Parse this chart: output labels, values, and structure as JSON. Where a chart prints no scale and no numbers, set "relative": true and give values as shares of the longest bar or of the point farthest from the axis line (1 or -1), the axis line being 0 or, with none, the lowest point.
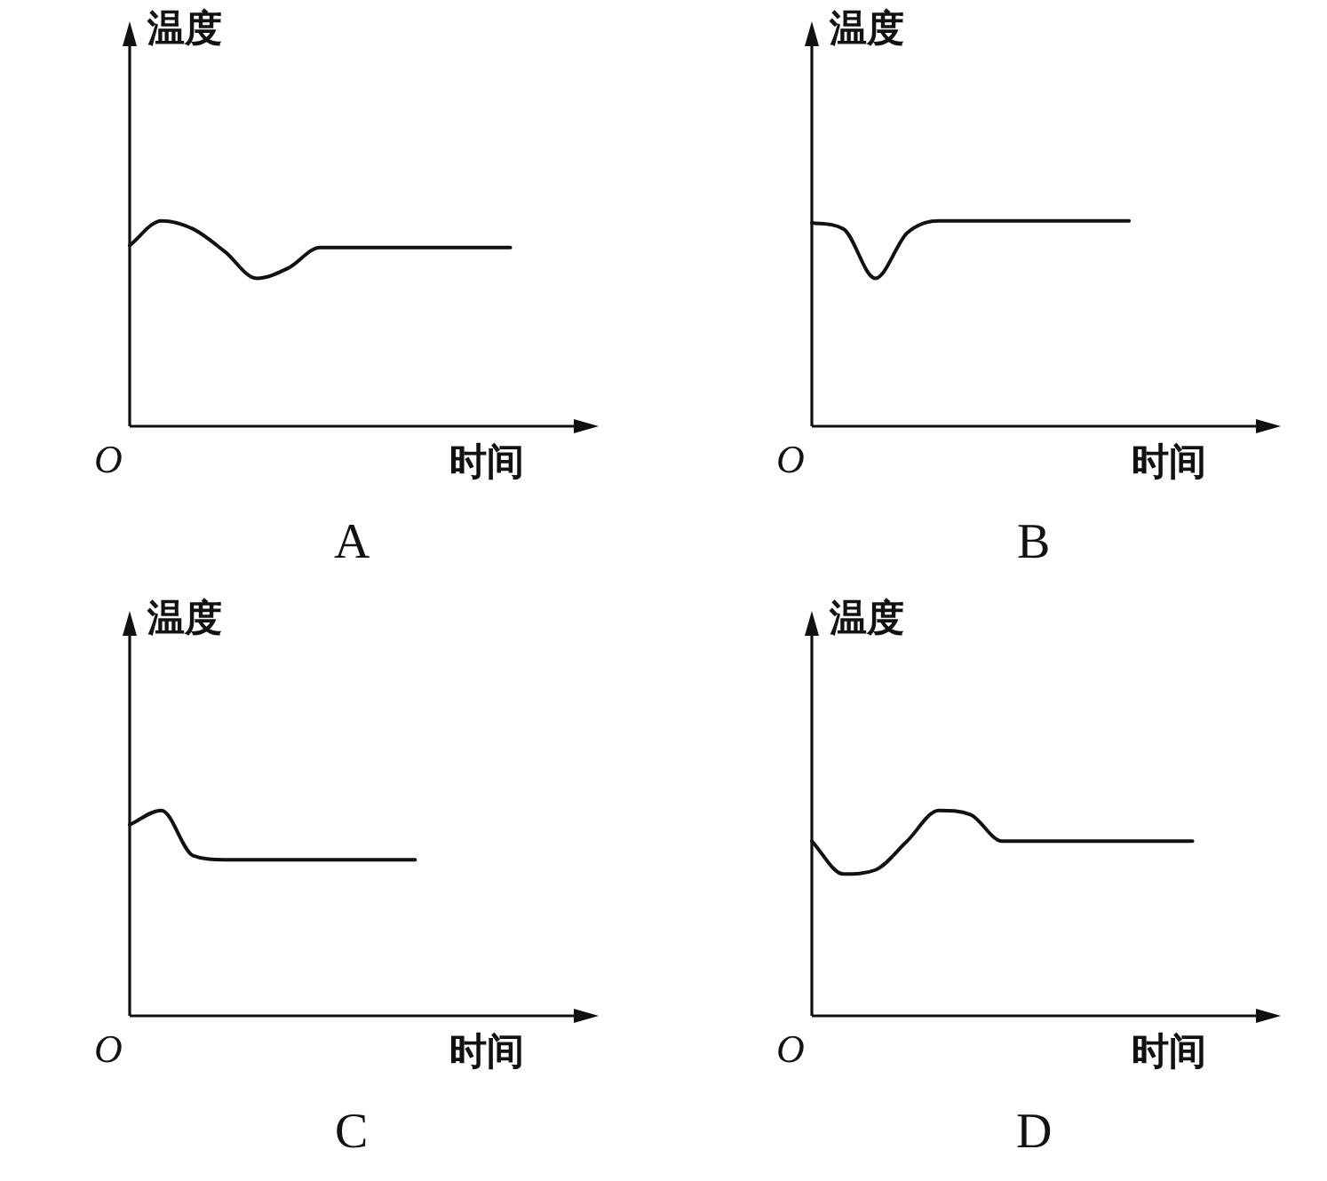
{
  "chart_data": [
    {
      "type": "line",
      "title": "A",
      "xlabel": "时间",
      "ylabel": "温度",
      "annotations": [
        "O"
      ],
      "relative": true,
      "color": "#111111",
      "categories": [
        null,
        null,
        null,
        null,
        null,
        null,
        null,
        null,
        null,
        null,
        null,
        null,
        null,
        null,
        null
      ],
      "values": [
        0.88,
        1.0,
        0.96,
        0.85,
        0.72,
        0.77,
        0.87,
        0.87,
        0.87,
        0.87,
        0.87,
        0.87,
        0.87,
        null,
        null
      ]
    },
    {
      "type": "line",
      "title": "B",
      "xlabel": "时间",
      "ylabel": "温度",
      "annotations": [
        "O"
      ],
      "relative": true,
      "color": "#111111",
      "categories": [
        null,
        null,
        null,
        null,
        null,
        null,
        null,
        null,
        null,
        null,
        null,
        null,
        null,
        null,
        null
      ],
      "values": [
        0.99,
        0.96,
        0.72,
        0.94,
        1.0,
        1.0,
        1.0,
        1.0,
        1.0,
        1.0,
        1.0,
        null,
        null,
        null,
        null
      ]
    },
    {
      "type": "line",
      "title": "C",
      "xlabel": "时间",
      "ylabel": "温度",
      "annotations": [
        "O"
      ],
      "relative": true,
      "color": "#111111",
      "categories": [
        null,
        null,
        null,
        null,
        null,
        null,
        null,
        null,
        null,
        null,
        null,
        null,
        null,
        null,
        null
      ],
      "values": [
        0.93,
        1.0,
        0.78,
        0.76,
        0.76,
        0.76,
        0.76,
        0.76,
        0.76,
        0.76,
        null,
        null,
        null,
        null,
        null
      ]
    },
    {
      "type": "line",
      "title": "D",
      "xlabel": "时间",
      "ylabel": "温度",
      "annotations": [
        "O"
      ],
      "relative": true,
      "color": "#111111",
      "categories": [
        null,
        null,
        null,
        null,
        null,
        null,
        null,
        null,
        null,
        null,
        null,
        null,
        null,
        null,
        null
      ],
      "values": [
        0.85,
        0.69,
        0.71,
        0.85,
        1.0,
        0.98,
        0.85,
        0.85,
        0.85,
        0.85,
        0.85,
        0.85,
        0.85,
        null,
        null
      ]
    }
  ]
}
